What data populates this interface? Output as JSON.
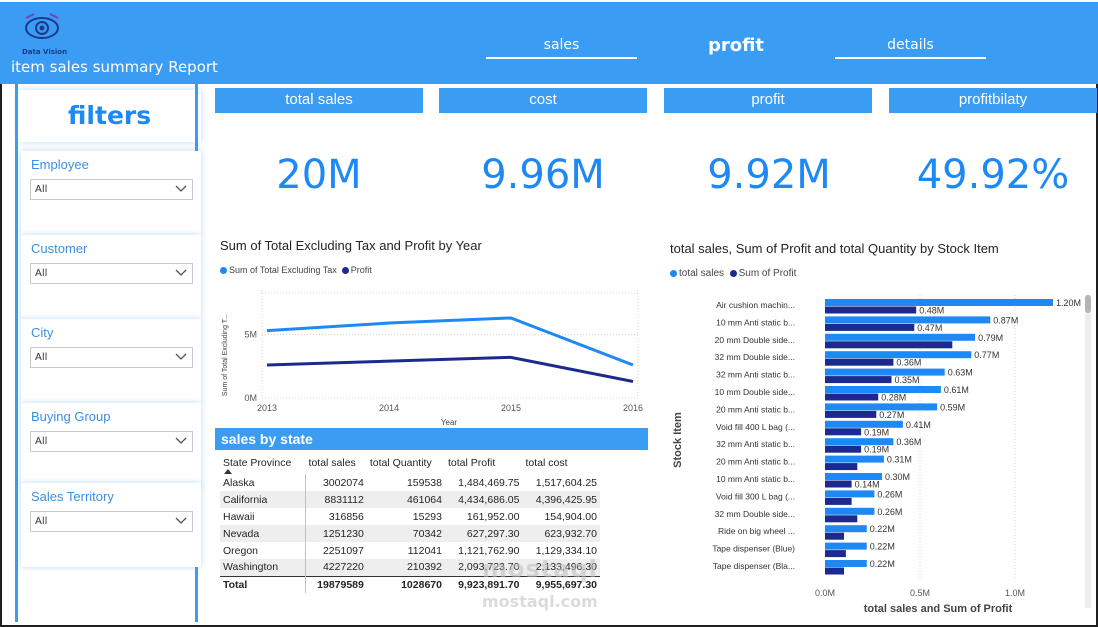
{
  "header": {
    "logo_text": "Data Vision",
    "report_title": "item sales summary Report",
    "nav": {
      "sales": "sales",
      "profit": "profit",
      "details": "details"
    }
  },
  "filters": {
    "title": "filters",
    "slicers": [
      {
        "label": "Employee",
        "value": "All"
      },
      {
        "label": "Customer",
        "value": "All"
      },
      {
        "label": "City",
        "value": "All"
      },
      {
        "label": "Buying Group",
        "value": "All"
      },
      {
        "label": "Sales Territory",
        "value": "All"
      }
    ]
  },
  "kpis": [
    {
      "label": "total sales",
      "value": "20M"
    },
    {
      "label": "cost",
      "value": "9.96M"
    },
    {
      "label": "profit",
      "value": "9.92M"
    },
    {
      "label": "profitbilaty",
      "value": "49.92%"
    }
  ],
  "colors": {
    "accent": "#3b9cf4",
    "series_light": "#1e88f5",
    "series_dark": "#1a2a8f"
  },
  "line_chart": {
    "title": "Sum of Total Excluding Tax and Profit by Year",
    "legend": [
      "Sum of Total Excluding Tax",
      "Profit"
    ],
    "xlabel": "Year",
    "ylabel": "Sum of Total Excluding T...",
    "y_ticks": [
      "0M",
      "5M"
    ]
  },
  "chart_data": [
    {
      "type": "line",
      "title": "Sum of Total Excluding Tax and Profit by Year",
      "x": [
        2013,
        2014,
        2015,
        2016
      ],
      "series": [
        {
          "name": "Sum of Total Excluding Tax",
          "values": [
            5.3,
            5.9,
            6.3,
            2.6
          ]
        },
        {
          "name": "Profit",
          "values": [
            2.6,
            2.9,
            3.2,
            1.3
          ]
        }
      ],
      "xlabel": "Year",
      "ylabel": "Sum of Total Excluding T...",
      "ylim": [
        0,
        8.5
      ],
      "y_ticks": [
        0,
        5
      ]
    },
    {
      "type": "bar",
      "orientation": "horizontal",
      "title": "total sales, Sum of Profit and total Quantity by Stock Item",
      "categories": [
        "Air cushion machin...",
        "10 mm Anti static b...",
        "20 mm Double side...",
        "32 mm Double side...",
        "32 mm Anti static b...",
        "10 mm Double side...",
        "20 mm Anti static b...",
        "Void fill 400 L bag (...",
        "32 mm Anti static b...",
        "20 mm Anti static b...",
        "10 mm Anti static b...",
        "Void fill 300 L bag (...",
        "32 mm Double side...",
        "Ride on big wheel ...",
        "Tape dispenser (Blue)",
        "Tape dispenser (Bla..."
      ],
      "series": [
        {
          "name": "total sales",
          "values": [
            1.2,
            0.87,
            0.79,
            0.77,
            0.63,
            0.61,
            0.59,
            0.41,
            0.36,
            0.31,
            0.3,
            0.26,
            0.26,
            0.22,
            0.22,
            0.22
          ]
        },
        {
          "name": "Sum of Profit",
          "values": [
            0.48,
            0.47,
            0.67,
            0.36,
            0.35,
            0.28,
            0.27,
            0.19,
            0.19,
            0.17,
            0.14,
            0.14,
            0.17,
            0.1,
            0.11,
            0.1
          ]
        }
      ],
      "labels_light": [
        "1.20M",
        "0.87M",
        "0.79M",
        "0.77M",
        "0.63M",
        "0.61M",
        "0.59M",
        "0.41M",
        "0.36M",
        "0.31M",
        "0.30M",
        "0.26M",
        "0.26M",
        "0.22M",
        "0.22M",
        "0.22M"
      ],
      "labels_dark": [
        "0.48M",
        "0.47M",
        "",
        "0.36M",
        "0.35M",
        "0.28M",
        "0.27M",
        "0.19M",
        "0.19M",
        "",
        "0.14M",
        "",
        "",
        "",
        "",
        ""
      ],
      "xlabel": "total sales and Sum of Profit",
      "ylabel": "Stock Item",
      "x_ticks": [
        "0.0M",
        "0.5M",
        "1.0M"
      ],
      "xlim": [
        0,
        1.2
      ]
    }
  ],
  "bar_chart": {
    "title": "total sales, Sum of Profit and total Quantity by Stock Item",
    "legend": [
      "total sales",
      "Sum of Profit"
    ],
    "xlabel": "total sales and Sum of Profit",
    "ylabel": "Stock Item"
  },
  "table": {
    "title": "sales by state",
    "columns": [
      "State Province",
      "total sales",
      "total Quantity",
      "total Profit",
      "total cost"
    ],
    "rows": [
      [
        "Alaska",
        "3002074",
        "159538",
        "1,484,469.75",
        "1,517,604.25"
      ],
      [
        "California",
        "8831112",
        "461064",
        "4,434,686.05",
        "4,396,425.95"
      ],
      [
        "Hawaii",
        "316856",
        "15293",
        "161,952.00",
        "154,904.00"
      ],
      [
        "Nevada",
        "1251230",
        "70342",
        "627,297.30",
        "623,932.70"
      ],
      [
        "Oregon",
        "2251097",
        "112041",
        "1,121,762.90",
        "1,129,334.10"
      ],
      [
        "Washington",
        "4227220",
        "210392",
        "2,093,723.70",
        "2,133,496.30"
      ]
    ],
    "total": [
      "Total",
      "19879589",
      "1028670",
      "9,923,891.70",
      "9,955,697.30"
    ]
  },
  "watermark": {
    "main": "mostaql",
    "sub": "mostaql.com"
  }
}
